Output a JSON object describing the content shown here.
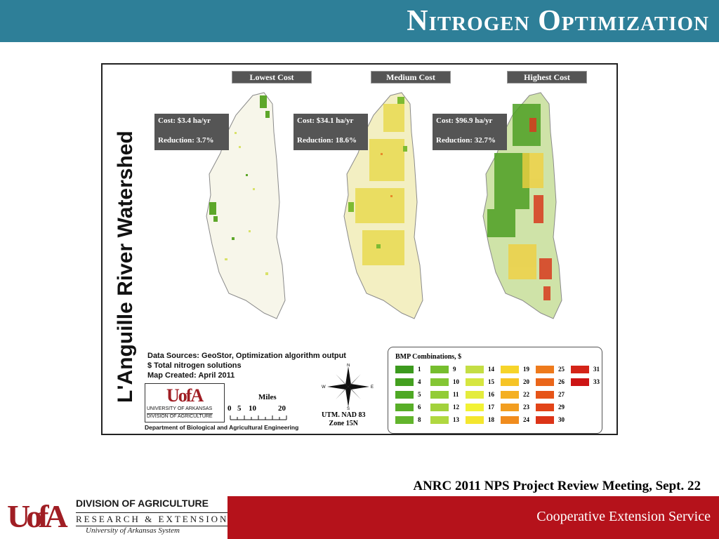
{
  "slide": {
    "title": "Nitrogen Optimization",
    "meeting": "ANRC 2011 NPS Project Review Meeting, Sept. 22",
    "footer_service": "Cooperative Extension Service",
    "colors": {
      "header": "#2e7f98",
      "footer_red": "#b5121b",
      "logo_red": "#a01e24"
    }
  },
  "footer_logo": {
    "mark": "UofA",
    "division": "DIVISION OF AGRICULTURE",
    "research": "RESEARCH & EXTENSION",
    "system": "University of Arkansas System"
  },
  "map": {
    "title": "L'Anguille River Watershed",
    "panels": [
      {
        "label": "Lowest Cost",
        "cost": "Cost: $3.4 ha/yr",
        "reduction": "Reduction: 3.7%"
      },
      {
        "label": "Medium Cost",
        "cost": "Cost: $34.1 ha/yr",
        "reduction": "Reduction: 18.6%"
      },
      {
        "label": "Highest Cost",
        "cost": "Cost: $96.9 ha/yr",
        "reduction": "Reduction: 32.7%"
      }
    ],
    "sources": [
      "Data Sources: GeoStor, Optimization algorithm output",
      "$ Total nitrogen solutions",
      "Map Created: April 2011"
    ],
    "logo": {
      "mark": "UofA",
      "line1": "UNIVERSITY OF ARKANSAS",
      "line2": "DIVISION OF AGRICULTURE"
    },
    "department": "Department of Biological and Agricultural Engineering",
    "scale": {
      "label": "Miles",
      "ticks": [
        "0",
        "5",
        "10",
        "20"
      ]
    },
    "compass": {
      "n": "N",
      "s": "S",
      "e": "E",
      "w": "W"
    },
    "projection": [
      "UTM. NAD 83",
      "Zone 15N"
    ],
    "legend": {
      "title": "BMP Combinations, $",
      "items": [
        {
          "label": "1",
          "color": "#3c9a1e"
        },
        {
          "label": "4",
          "color": "#44a020"
        },
        {
          "label": "5",
          "color": "#4ea824"
        },
        {
          "label": "6",
          "color": "#58ae28"
        },
        {
          "label": "8",
          "color": "#62b42c"
        },
        {
          "label": "9",
          "color": "#76be2e"
        },
        {
          "label": "10",
          "color": "#84c634"
        },
        {
          "label": "11",
          "color": "#92cc36"
        },
        {
          "label": "12",
          "color": "#a2d23c"
        },
        {
          "label": "13",
          "color": "#b0d840"
        },
        {
          "label": "14",
          "color": "#c4de44"
        },
        {
          "label": "15",
          "color": "#d6e640"
        },
        {
          "label": "16",
          "color": "#e4ec3c"
        },
        {
          "label": "17",
          "color": "#f2f234"
        },
        {
          "label": "18",
          "color": "#f4e62e"
        },
        {
          "label": "19",
          "color": "#f6d42a"
        },
        {
          "label": "20",
          "color": "#f6c426"
        },
        {
          "label": "22",
          "color": "#f4b022"
        },
        {
          "label": "23",
          "color": "#f29e20"
        },
        {
          "label": "24",
          "color": "#f08c1e"
        },
        {
          "label": "25",
          "color": "#ee7a1c"
        },
        {
          "label": "26",
          "color": "#ea661a"
        },
        {
          "label": "27",
          "color": "#e65418"
        },
        {
          "label": "29",
          "color": "#e24418"
        },
        {
          "label": "30",
          "color": "#dc3418"
        },
        {
          "label": "31",
          "color": "#d42418"
        },
        {
          "label": "33",
          "color": "#cc1414"
        }
      ]
    }
  }
}
